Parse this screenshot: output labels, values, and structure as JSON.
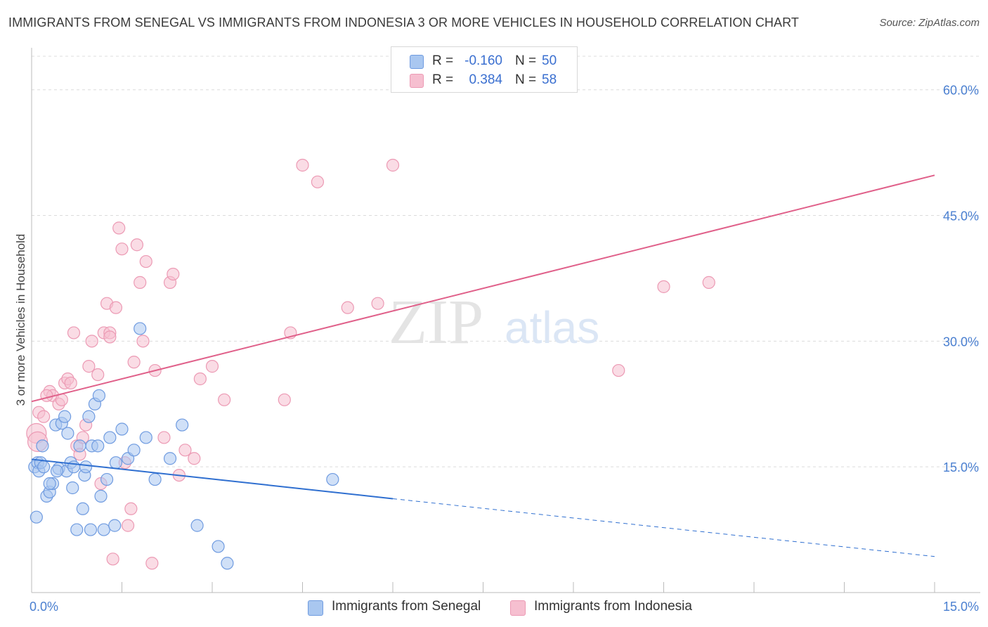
{
  "title": "IMMIGRANTS FROM SENEGAL VS IMMIGRANTS FROM INDONESIA 3 OR MORE VEHICLES IN HOUSEHOLD CORRELATION CHART",
  "source": "Source: ZipAtlas.com",
  "watermark": {
    "zip": "ZIP",
    "atlas": "atlas"
  },
  "legend": {
    "rows": [
      {
        "r_label": "R =",
        "r_value": "-0.160",
        "n_label": "N =",
        "n_value": "50"
      },
      {
        "r_label": "R =",
        "r_value": "0.384",
        "n_label": "N =",
        "n_value": "58"
      }
    ]
  },
  "bottom_legend": {
    "senegal": "Immigrants from Senegal",
    "indonesia": "Immigrants from Indonesia"
  },
  "colors": {
    "senegal_fill": "#a9c7f0",
    "senegal_stroke": "#6f9be0",
    "senegal_line": "#2f6fd0",
    "indonesia_fill": "#f6bfd0",
    "indonesia_stroke": "#ec9ab4",
    "indonesia_line": "#e0608a",
    "grid": "#dcdcdc",
    "tick_text": "#4a7fd0"
  },
  "chart_data": {
    "type": "scatter",
    "title": "IMMIGRANTS FROM SENEGAL VS IMMIGRANTS FROM INDONESIA 3 OR MORE VEHICLES IN HOUSEHOLD CORRELATION CHART",
    "xlabel": "",
    "ylabel": "3 or more Vehicles in Household",
    "xlim": [
      0,
      15
    ],
    "ylim": [
      0,
      64
    ],
    "x_tick_labels": [
      {
        "value": 0,
        "label": "0.0%"
      },
      {
        "value": 15,
        "label": "15.0%"
      }
    ],
    "y_tick_labels": [
      {
        "value": 15,
        "label": "15.0%"
      },
      {
        "value": 30,
        "label": "30.0%"
      },
      {
        "value": 45,
        "label": "45.0%"
      },
      {
        "value": 60,
        "label": "60.0%"
      }
    ],
    "series": [
      {
        "name": "Immigrants from Senegal",
        "points": [
          [
            0.05,
            15.0
          ],
          [
            0.1,
            15.5
          ],
          [
            0.12,
            14.5
          ],
          [
            0.15,
            15.5
          ],
          [
            0.18,
            17.5
          ],
          [
            0.2,
            15.0
          ],
          [
            0.25,
            11.5
          ],
          [
            0.3,
            12.0
          ],
          [
            0.35,
            13.0
          ],
          [
            0.4,
            20.0
          ],
          [
            0.45,
            14.8
          ],
          [
            0.5,
            20.2
          ],
          [
            0.55,
            21.0
          ],
          [
            0.58,
            14.5
          ],
          [
            0.6,
            19.0
          ],
          [
            0.65,
            15.5
          ],
          [
            0.68,
            12.5
          ],
          [
            0.7,
            15.0
          ],
          [
            0.75,
            7.5
          ],
          [
            0.8,
            17.5
          ],
          [
            0.85,
            10.0
          ],
          [
            0.88,
            14.0
          ],
          [
            0.9,
            15.0
          ],
          [
            0.95,
            21.0
          ],
          [
            0.98,
            7.5
          ],
          [
            1.0,
            17.5
          ],
          [
            1.05,
            22.5
          ],
          [
            1.1,
            17.5
          ],
          [
            1.12,
            23.5
          ],
          [
            1.15,
            11.5
          ],
          [
            1.2,
            7.5
          ],
          [
            1.25,
            13.5
          ],
          [
            1.3,
            18.5
          ],
          [
            1.38,
            8.0
          ],
          [
            1.4,
            15.5
          ],
          [
            1.5,
            19.5
          ],
          [
            1.6,
            16.0
          ],
          [
            1.7,
            17.0
          ],
          [
            1.8,
            31.5
          ],
          [
            1.9,
            18.5
          ],
          [
            2.05,
            13.5
          ],
          [
            2.3,
            16.0
          ],
          [
            2.5,
            20.0
          ],
          [
            2.75,
            8.0
          ],
          [
            3.1,
            5.5
          ],
          [
            3.25,
            3.5
          ],
          [
            5.0,
            13.5
          ],
          [
            0.08,
            9.0
          ],
          [
            0.3,
            13.0
          ],
          [
            0.42,
            14.5
          ]
        ],
        "trend": {
          "x0": 0,
          "y0": 15.9,
          "x1": 6.0,
          "y1": 11.2,
          "dash_to_x": 15,
          "dash_to_y": 4.3
        }
      },
      {
        "name": "Immigrants from Indonesia",
        "points": [
          [
            0.08,
            19.0
          ],
          [
            0.12,
            21.5
          ],
          [
            0.2,
            21.0
          ],
          [
            0.3,
            24.0
          ],
          [
            0.35,
            23.5
          ],
          [
            0.45,
            22.5
          ],
          [
            0.5,
            23.0
          ],
          [
            0.55,
            25.0
          ],
          [
            0.6,
            25.5
          ],
          [
            0.65,
            25.0
          ],
          [
            0.7,
            31.0
          ],
          [
            0.75,
            17.5
          ],
          [
            0.8,
            16.5
          ],
          [
            0.85,
            18.5
          ],
          [
            0.9,
            20.0
          ],
          [
            0.95,
            27.0
          ],
          [
            1.0,
            30.0
          ],
          [
            1.1,
            26.0
          ],
          [
            1.15,
            13.0
          ],
          [
            1.2,
            31.0
          ],
          [
            1.25,
            34.5
          ],
          [
            1.3,
            31.0
          ],
          [
            1.35,
            4.0
          ],
          [
            1.4,
            34.0
          ],
          [
            1.45,
            43.5
          ],
          [
            1.5,
            41.0
          ],
          [
            1.55,
            15.5
          ],
          [
            1.6,
            8.0
          ],
          [
            1.65,
            10.0
          ],
          [
            1.7,
            27.5
          ],
          [
            1.75,
            41.5
          ],
          [
            1.8,
            37.0
          ],
          [
            1.85,
            30.0
          ],
          [
            1.9,
            39.5
          ],
          [
            2.0,
            3.5
          ],
          [
            2.05,
            26.5
          ],
          [
            2.2,
            18.5
          ],
          [
            2.3,
            37.0
          ],
          [
            2.35,
            38.0
          ],
          [
            2.45,
            14.0
          ],
          [
            2.55,
            17.0
          ],
          [
            2.7,
            16.0
          ],
          [
            2.8,
            25.5
          ],
          [
            3.0,
            27.0
          ],
          [
            3.2,
            23.0
          ],
          [
            4.2,
            23.0
          ],
          [
            4.3,
            31.0
          ],
          [
            4.5,
            51.0
          ],
          [
            4.75,
            49.0
          ],
          [
            5.25,
            34.0
          ],
          [
            5.75,
            34.5
          ],
          [
            6.0,
            51.0
          ],
          [
            9.75,
            26.5
          ],
          [
            10.5,
            36.5
          ],
          [
            11.25,
            37.0
          ],
          [
            0.1,
            18.0
          ],
          [
            0.25,
            23.5
          ],
          [
            1.3,
            30.5
          ]
        ],
        "trend": {
          "x0": 0,
          "y0": 22.8,
          "x1": 15,
          "y1": 49.8
        }
      }
    ]
  }
}
